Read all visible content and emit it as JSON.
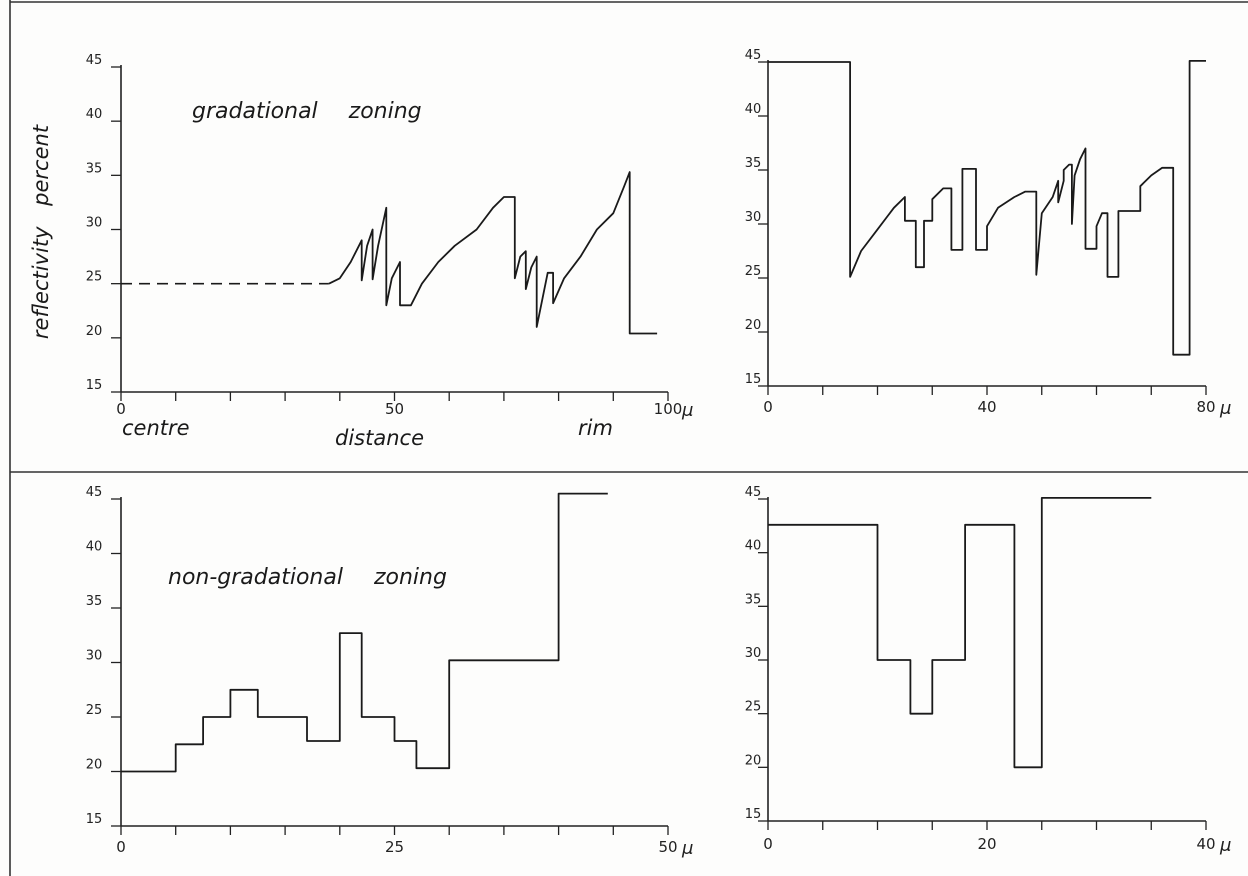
{
  "colors": {
    "ink": "#1a1a1a",
    "paper": "#fdfdfc"
  },
  "chart_data": [
    {
      "type": "line",
      "title": "gradational zoning",
      "xlabel": "distance",
      "ylabel": "reflectivity percent",
      "x_left_label": "centre",
      "x_right_label": "rim",
      "x_unit": "μ",
      "xlim": [
        0,
        100
      ],
      "ylim": [
        15,
        45
      ],
      "x_ticks": [
        0,
        50,
        100
      ],
      "x_tick_labels": [
        "0",
        "50",
        "100"
      ],
      "y_ticks": [
        15,
        20,
        25,
        30,
        35,
        40,
        45
      ],
      "y_tick_labels": [
        "15",
        "20",
        "25",
        "30",
        "35",
        "40",
        "45"
      ],
      "grid": false,
      "dashed_segment": {
        "x": [
          0,
          38
        ],
        "y": [
          25,
          25
        ]
      },
      "series": [
        {
          "x": [
            38,
            40,
            42,
            44,
            44,
            45,
            46,
            46,
            47,
            48.5,
            48.5,
            49.5,
            51,
            51,
            52.5,
            53,
            53,
            55,
            58,
            61,
            65,
            68,
            70,
            72,
            72,
            73,
            74,
            74,
            75,
            76,
            76,
            77,
            78,
            79,
            79,
            81,
            84,
            87,
            90,
            92,
            93,
            93,
            98
          ],
          "y": [
            25,
            25.5,
            27,
            29,
            25.3,
            28.5,
            30,
            25.4,
            28.5,
            32,
            23,
            25.5,
            27,
            23,
            23,
            23,
            23,
            25,
            27,
            28.5,
            30,
            32,
            33,
            33,
            25.5,
            27.5,
            28,
            24.5,
            26.5,
            27.5,
            21,
            23.5,
            26,
            26,
            23.2,
            25.5,
            27.5,
            30,
            31.5,
            34,
            35.3,
            20.4,
            20.4
          ]
        }
      ]
    },
    {
      "type": "line",
      "x_unit": "μ",
      "xlim": [
        0,
        80
      ],
      "ylim": [
        15,
        45
      ],
      "x_ticks": [
        0,
        40,
        80
      ],
      "x_tick_labels": [
        "0",
        "40",
        "80"
      ],
      "y_ticks": [
        15,
        20,
        25,
        30,
        35,
        40,
        45
      ],
      "y_tick_labels": [
        "15",
        "20",
        "25",
        "30",
        "35",
        "40",
        "45"
      ],
      "grid": false,
      "series": [
        {
          "x": [
            0,
            15,
            15,
            17,
            20,
            23,
            25,
            25,
            27,
            27,
            28.5,
            28.5,
            30,
            30,
            32,
            33.5,
            33.5,
            35.5,
            35.5,
            38,
            38,
            40,
            40,
            42,
            45,
            47,
            49,
            49,
            50,
            52,
            53,
            53,
            54,
            54,
            55,
            55.5,
            55.5,
            56,
            57,
            58,
            58,
            60,
            60,
            61,
            62,
            62,
            64,
            64,
            68,
            68,
            70,
            72,
            74,
            74,
            77,
            77,
            80
          ],
          "y": [
            45,
            45,
            25.1,
            27.5,
            29.5,
            31.5,
            32.5,
            30.3,
            30.3,
            26,
            26,
            30.3,
            30.3,
            32.3,
            33.3,
            33.3,
            27.6,
            27.6,
            35.1,
            35.1,
            27.6,
            27.6,
            29.8,
            31.5,
            32.5,
            33,
            33,
            25.3,
            31,
            32.5,
            34,
            32,
            34,
            35,
            35.5,
            35.5,
            30,
            34.5,
            36,
            37,
            27.7,
            27.7,
            29.8,
            31,
            31,
            25.1,
            25.1,
            31.2,
            31.2,
            33.5,
            34.5,
            35.2,
            35.2,
            17.9,
            17.9,
            45.1,
            45.1
          ]
        }
      ]
    },
    {
      "type": "line",
      "title": "non-gradational zoning",
      "x_unit": "μ",
      "xlim": [
        0,
        50
      ],
      "ylim": [
        15,
        45
      ],
      "x_ticks": [
        0,
        25,
        50
      ],
      "x_tick_labels": [
        "0",
        "25",
        "50"
      ],
      "y_ticks": [
        15,
        20,
        25,
        30,
        35,
        40,
        45
      ],
      "y_tick_labels": [
        "15",
        "20",
        "25",
        "30",
        "35",
        "40",
        "45"
      ],
      "grid": false,
      "series": [
        {
          "x": [
            0,
            5,
            5,
            7.5,
            7.5,
            10,
            10,
            12.5,
            12.5,
            17,
            17,
            20,
            20,
            22,
            22,
            25,
            25,
            27,
            27,
            30,
            30,
            40,
            40,
            44.5
          ],
          "y": [
            20,
            20,
            22.5,
            22.5,
            25,
            25,
            27.5,
            27.5,
            25,
            25,
            22.8,
            22.8,
            32.7,
            32.7,
            25,
            25,
            22.8,
            22.8,
            20.3,
            20.3,
            30.2,
            30.2,
            45.5,
            45.5
          ]
        }
      ]
    },
    {
      "type": "line",
      "x_unit": "μ",
      "xlim": [
        0,
        40
      ],
      "ylim": [
        15,
        45
      ],
      "x_ticks": [
        0,
        20,
        40
      ],
      "x_tick_labels": [
        "0",
        "20",
        "40"
      ],
      "y_ticks": [
        15,
        20,
        25,
        30,
        35,
        40,
        45
      ],
      "y_tick_labels": [
        "15",
        "20",
        "25",
        "30",
        "35",
        "40",
        "45"
      ],
      "grid": false,
      "series": [
        {
          "x": [
            0,
            10,
            10,
            13,
            13,
            15,
            15,
            18,
            18,
            22.5,
            22.5,
            25,
            25,
            35
          ],
          "y": [
            42.6,
            42.6,
            30,
            30,
            25,
            25,
            30,
            30,
            42.6,
            42.6,
            20,
            20,
            45.1,
            45.1
          ]
        }
      ]
    }
  ]
}
